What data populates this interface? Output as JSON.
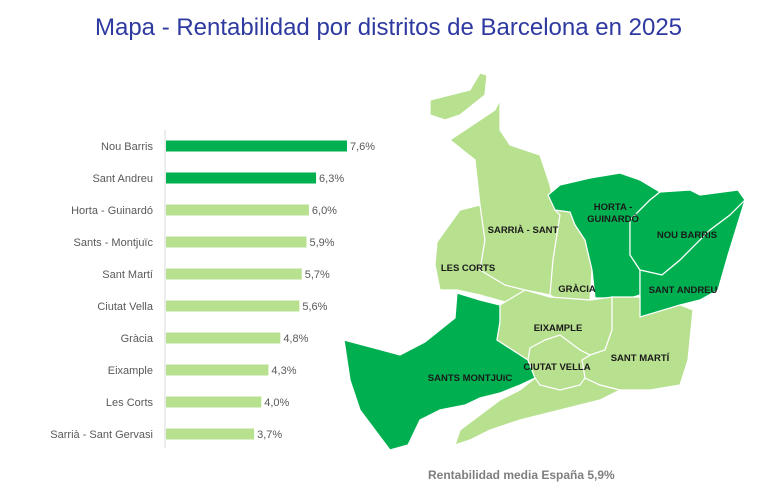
{
  "title": "Mapa - Rentabilidad por distritos de Barcelona en 2025",
  "footer": "Rentabilidad media España 5,9%",
  "colors": {
    "high": "#00b050",
    "low": "#b7e08f",
    "title": "#2e3aa0"
  },
  "chart_data": [
    {
      "type": "bar",
      "orientation": "horizontal",
      "categories": [
        "Nou Barris",
        "Sant Andreu",
        "Horta - Guinardó",
        "Sants - Montjuïc",
        "Sant Martí",
        "Ciutat Vella",
        "Gràcia",
        "Eixample",
        "Les Corts",
        "Sarrià - Sant Gervasi"
      ],
      "values": [
        7.6,
        6.3,
        6.0,
        5.9,
        5.7,
        5.6,
        4.8,
        4.3,
        4.0,
        3.7
      ],
      "labels": [
        "7,6%",
        "6,3%",
        "6,0%",
        "5,9%",
        "5,7%",
        "5,6%",
        "4,8%",
        "4,3%",
        "4,0%",
        "3,7%"
      ],
      "highlight": [
        true,
        true,
        false,
        false,
        false,
        false,
        false,
        false,
        false,
        false
      ],
      "unit": "%",
      "grid": false
    },
    {
      "type": "choropleth-map",
      "regions": [
        {
          "name": "Sants Montjuïc",
          "label": "SANTS MONTJUïC",
          "highlight": true
        },
        {
          "name": "Les Corts",
          "label": "LES CORTS",
          "highlight": false
        },
        {
          "name": "Sarrià - Sant Gervasi",
          "label": "SARRIÀ - SANT",
          "highlight": false
        },
        {
          "name": "Gràcia",
          "label": "GRÀCIA",
          "highlight": false
        },
        {
          "name": "Horta - Guinardó",
          "label": "HORTA -",
          "label2": "GUINARDÓ",
          "highlight": true
        },
        {
          "name": "Nou Barris",
          "label": "NOU BARRIS",
          "highlight": true
        },
        {
          "name": "Sant Andreu",
          "label": "SANT ANDREU",
          "highlight": true
        },
        {
          "name": "Eixample",
          "label": "EIXAMPLE",
          "highlight": false
        },
        {
          "name": "Sant Martí",
          "label": "SANT MARTÍ",
          "highlight": false
        },
        {
          "name": "Ciutat Vella",
          "label": "CIUTAT VELLA",
          "highlight": false
        }
      ]
    }
  ]
}
